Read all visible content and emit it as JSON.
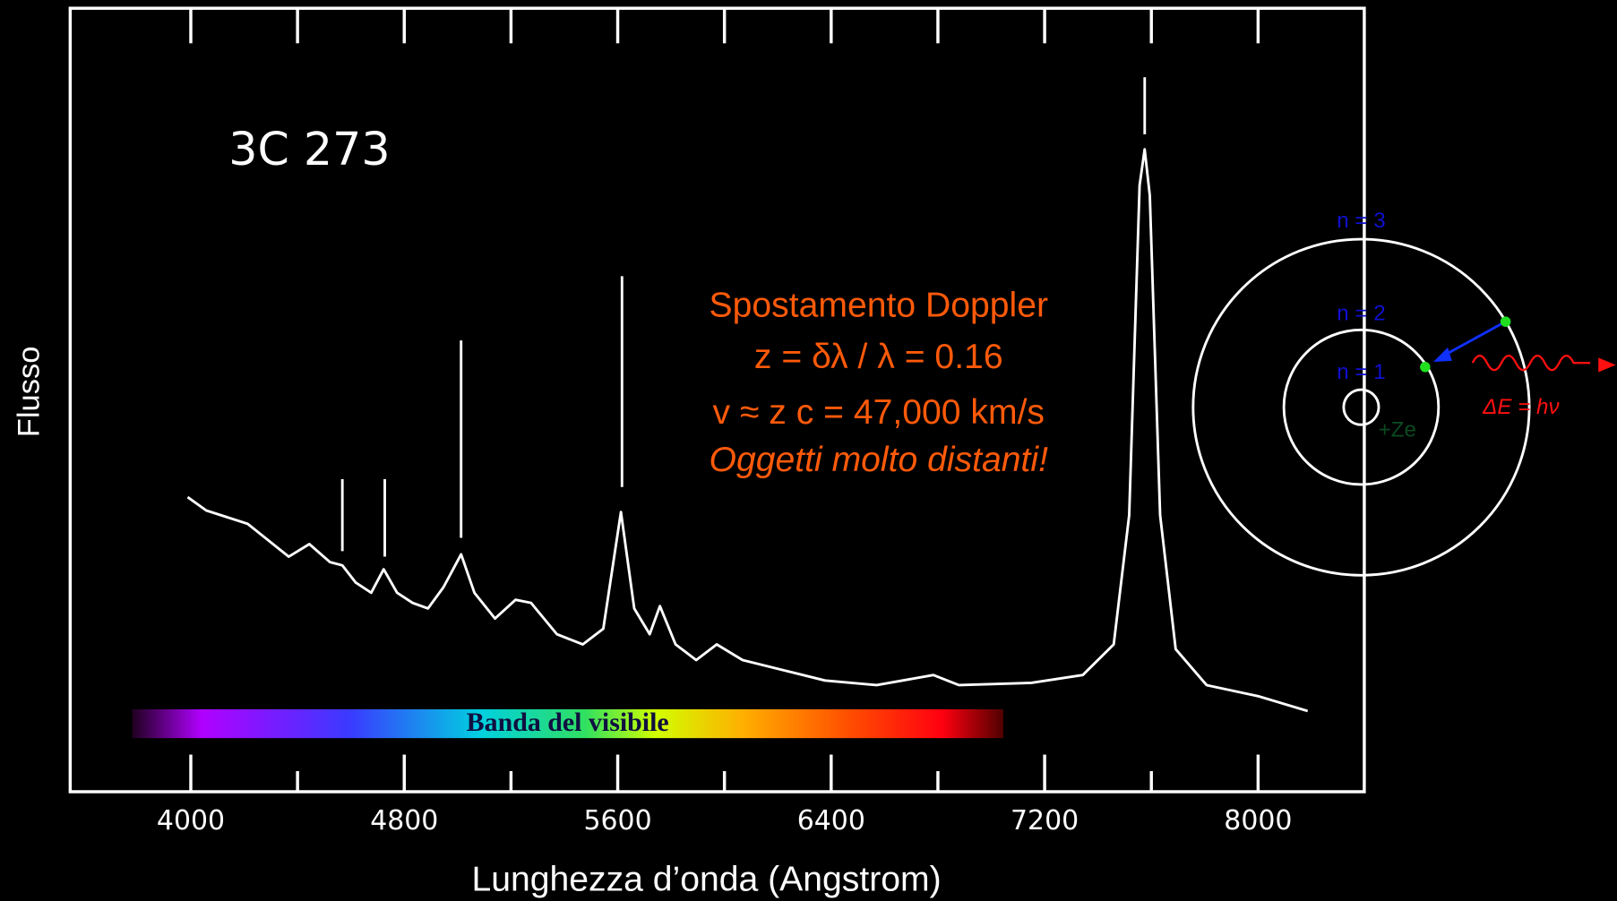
{
  "chart_data": {
    "type": "line",
    "title": "3C 273",
    "x_label": "Lunghezza d’onda (Angstrom)",
    "y_label": "Flusso",
    "x": [
      3988,
      4058,
      4213,
      4367,
      4444,
      4522,
      4568,
      4618,
      4676,
      4723,
      4773,
      4831,
      4889,
      4947,
      5013,
      5063,
      5140,
      5217,
      5275,
      5372,
      5469,
      5546,
      5612,
      5662,
      5720,
      5758,
      5817,
      5894,
      5971,
      6068,
      6222,
      6377,
      6570,
      6783,
      6879,
      7150,
      7343,
      7459,
      7517,
      7556,
      7575,
      7594,
      7633,
      7691,
      7807,
      8000,
      8186
    ],
    "series": [
      {
        "color": "#ffffff",
        "values": [
          37.6,
          35.9,
          34.2,
          30.0,
          31.6,
          29.3,
          28.9,
          26.7,
          25.4,
          28.4,
          25.4,
          24.1,
          23.4,
          26.1,
          30.3,
          25.4,
          22.1,
          24.5,
          24.1,
          20.1,
          18.8,
          20.8,
          35.7,
          23.4,
          20.1,
          23.7,
          18.8,
          16.8,
          18.8,
          16.8,
          15.5,
          14.2,
          13.6,
          14.9,
          13.6,
          13.9,
          14.9,
          18.8,
          35.3,
          77.4,
          82.0,
          76.1,
          35.3,
          18.2,
          13.6,
          12.2,
          10.3
        ]
      }
    ],
    "xlim": [
      3548,
      8398
    ],
    "ylim": [
      0,
      100
    ],
    "xticks": [
      4000,
      4800,
      5600,
      6400,
      7200,
      8000
    ],
    "minor_xticks": [
      4400,
      5200,
      6000,
      6800,
      7600
    ],
    "markers": [
      {
        "x": 4568,
        "y": [
          30.7,
          39.9
        ]
      },
      {
        "x": 4727,
        "y": [
          30.0,
          39.9
        ]
      },
      {
        "x": 5013,
        "y": [
          32.4,
          57.6
        ]
      },
      {
        "x": 5616,
        "y": [
          38.9,
          65.8
        ]
      },
      {
        "x": 7575,
        "y": [
          83.9,
          91.2
        ]
      }
    ],
    "visible_band": {
      "label": "Banda del visibile",
      "range": [
        3780,
        7045
      ]
    },
    "annotations": [
      "Spostamento Doppler",
      "z = δλ / λ = 0.16",
      "v ≈ z c = 47,000 km/s",
      "Oggetti molto distanti!"
    ],
    "bohr_diagram": {
      "levels": [
        "n = 3",
        "n = 2",
        "n = 1"
      ],
      "nucleus": "+Ze",
      "photon": "ΔE = hν"
    }
  }
}
